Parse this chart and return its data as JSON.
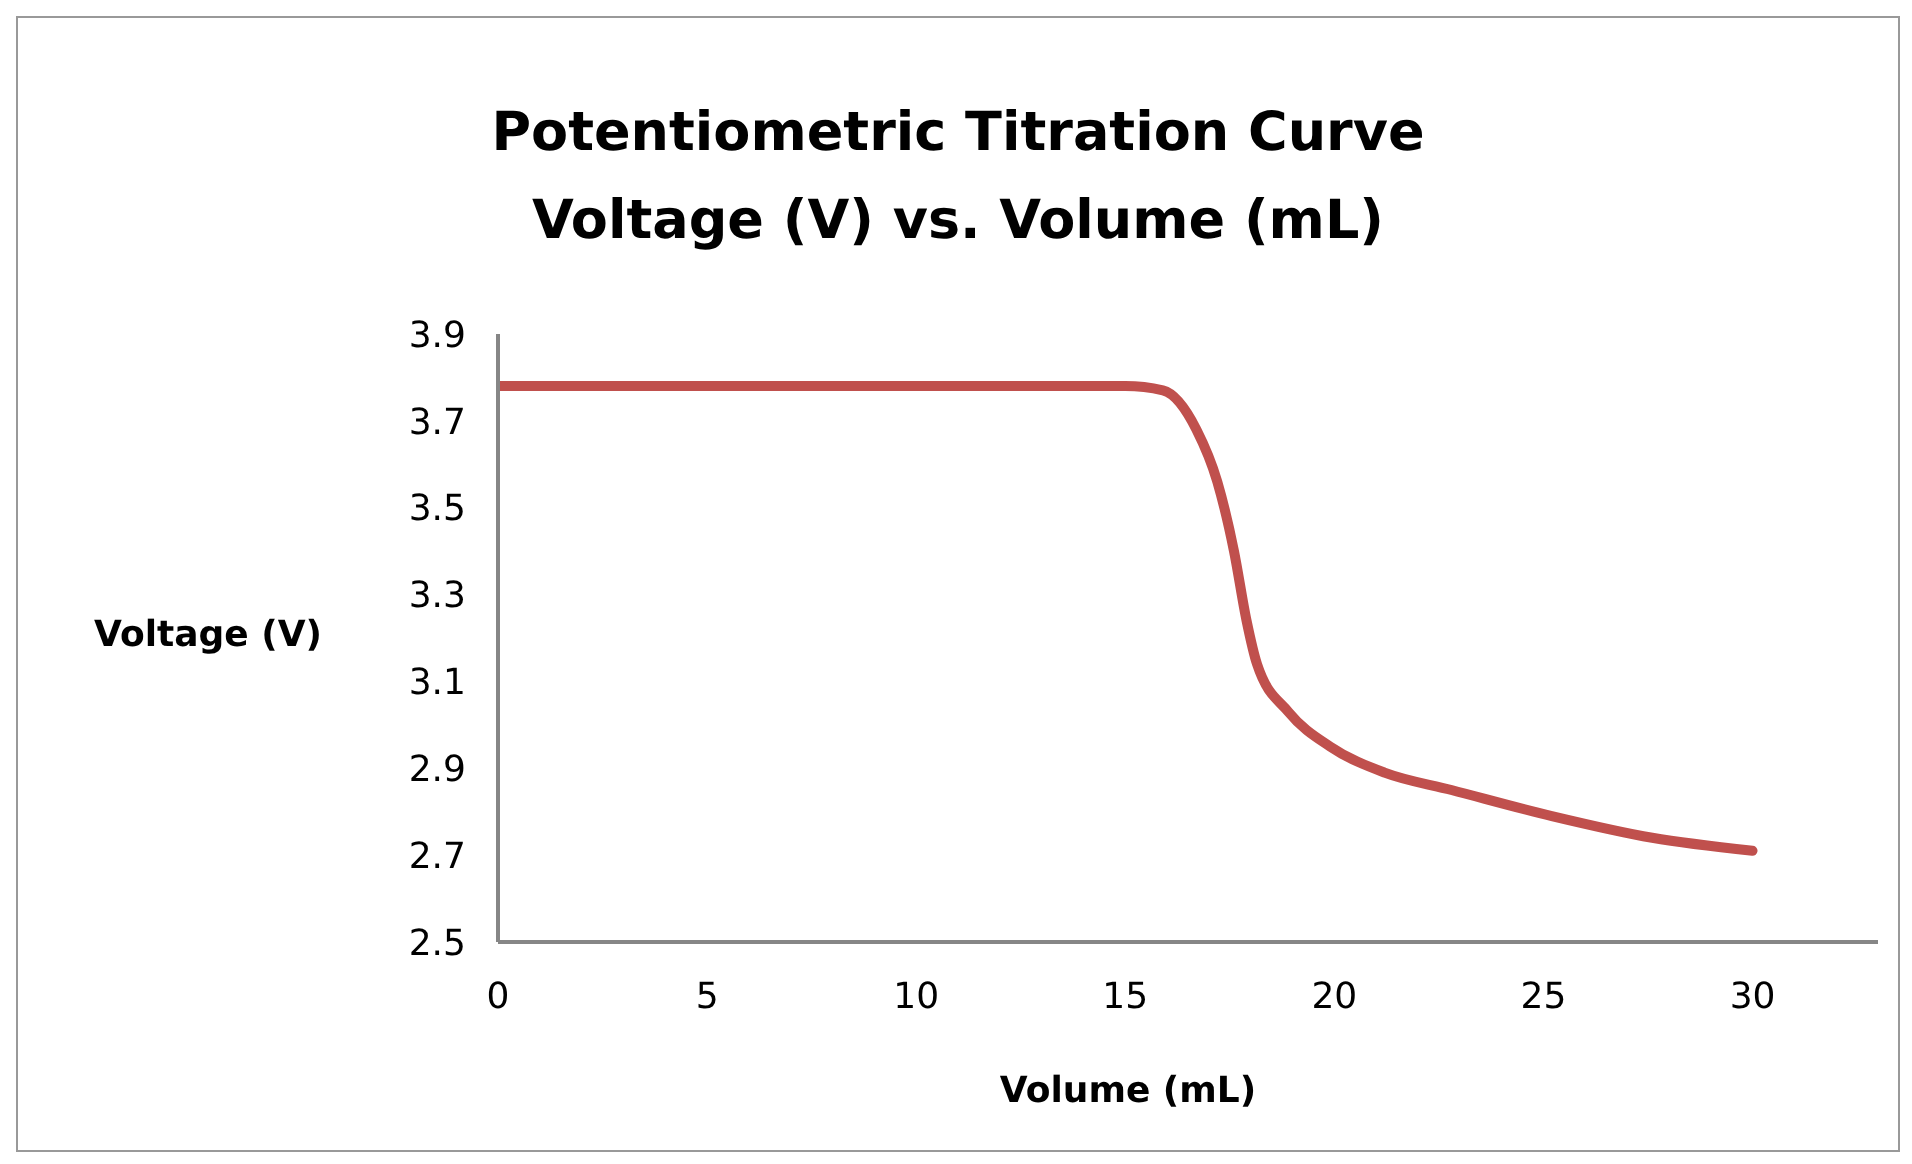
{
  "chart_data": {
    "type": "line",
    "title": "Potentiometric Titration Curve",
    "subtitle": "Voltage (V) vs. Volume (mL)",
    "xlabel": "Volume (mL)",
    "ylabel": "Voltage (V)",
    "x": [
      0,
      2,
      4,
      6,
      8,
      10,
      12,
      14,
      15,
      15.9,
      16.7,
      17.2,
      17.6,
      17.9,
      18.15,
      18.9,
      19.9,
      21.2,
      22.8,
      25.2,
      27.6,
      30
    ],
    "series": [
      {
        "color": "#c0504d",
        "values": [
          3.78,
          3.78,
          3.78,
          3.78,
          3.78,
          3.78,
          3.78,
          3.78,
          3.78,
          3.77,
          3.68,
          3.56,
          3.4,
          3.24,
          3.14,
          3.03,
          2.95,
          2.89,
          2.85,
          2.79,
          2.74,
          2.71
        ]
      }
    ],
    "xlim": [
      0,
      33
    ],
    "xticks": [
      0,
      5,
      10,
      15,
      20,
      25,
      30
    ],
    "ylim": [
      2.5,
      3.9
    ],
    "yticks": [
      2.5,
      2.7,
      2.9,
      3.1,
      3.3,
      3.5,
      3.7,
      3.9
    ],
    "grid": false,
    "legend": false,
    "marker": "none",
    "line_style": "solid"
  }
}
